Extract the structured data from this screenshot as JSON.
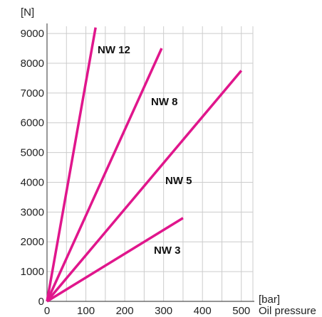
{
  "chart_data": {
    "type": "line",
    "title": "",
    "ylabel_unit": "[N]",
    "xlabel_unit": "[bar]",
    "xlabel": "Oil pressure",
    "xlim": [
      0,
      520
    ],
    "ylim": [
      0,
      9300
    ],
    "x_ticks": [
      0,
      100,
      200,
      300,
      400,
      500
    ],
    "y_ticks": [
      0,
      1000,
      2000,
      3000,
      4000,
      5000,
      6000,
      7000,
      8000,
      9000
    ],
    "grid": true,
    "colors": {
      "series": "#e0168c",
      "grid": "#cccccc",
      "axis": "#555555"
    },
    "series": [
      {
        "name": "NW 12",
        "x": [
          0,
          125
        ],
        "y": [
          0,
          9200
        ]
      },
      {
        "name": "NW 8",
        "x": [
          0,
          295
        ],
        "y": [
          0,
          8500
        ]
      },
      {
        "name": "NW 5",
        "x": [
          0,
          500
        ],
        "y": [
          0,
          7750
        ]
      },
      {
        "name": "NW 3",
        "x": [
          0,
          350
        ],
        "y": [
          0,
          2800
        ]
      }
    ]
  }
}
